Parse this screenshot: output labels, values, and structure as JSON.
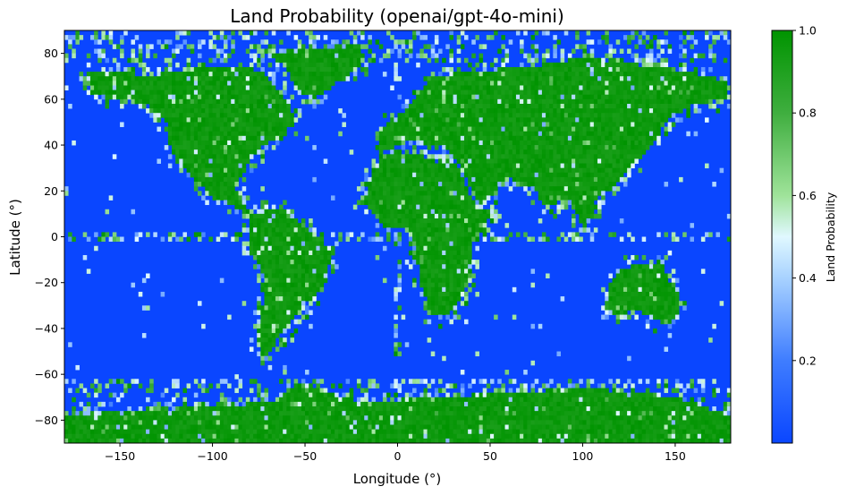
{
  "chart_data": {
    "type": "heatmap",
    "title": "Land Probability (openai/gpt-4o-mini)",
    "xlabel": "Longitude (°)",
    "ylabel": "Latitude (°)",
    "xlim": [
      -180,
      180
    ],
    "ylim": [
      -90,
      90
    ],
    "x_ticks": [
      -150,
      -100,
      -50,
      0,
      50,
      100,
      150
    ],
    "y_ticks": [
      -80,
      -60,
      -40,
      -20,
      0,
      20,
      40,
      60,
      80
    ],
    "x_tick_labels": [
      "−150",
      "−100",
      "−50",
      "0",
      "50",
      "100",
      "150"
    ],
    "y_tick_labels": [
      "−80",
      "−60",
      "−40",
      "−20",
      "0",
      "20",
      "40",
      "60",
      "80"
    ],
    "grid": false,
    "cell_size_degrees": 2,
    "colorbar": {
      "label": "Land Probability",
      "range": [
        0,
        1
      ],
      "ticks": [
        0.2,
        0.4,
        0.6,
        0.8,
        1.0
      ],
      "tick_labels": [
        "0.2",
        "0.4",
        "0.6",
        "0.8",
        "1.0"
      ],
      "colors": [
        {
          "value": 0.0,
          "color": "#0a46ff"
        },
        {
          "value": 0.2,
          "color": "#3f7dff"
        },
        {
          "value": 0.4,
          "color": "#a8d2ff"
        },
        {
          "value": 0.5,
          "color": "#e0f8ff"
        },
        {
          "value": 0.6,
          "color": "#9fe39a"
        },
        {
          "value": 0.8,
          "color": "#3fae3f"
        },
        {
          "value": 1.0,
          "color": "#009400"
        }
      ]
    },
    "land_regions": [
      {
        "name": "North America",
        "points": [
          [
            -168,
            72
          ],
          [
            -150,
            72
          ],
          [
            -135,
            70
          ],
          [
            -120,
            72
          ],
          [
            -100,
            74
          ],
          [
            -80,
            74
          ],
          [
            -70,
            70
          ],
          [
            -62,
            62
          ],
          [
            -55,
            52
          ],
          [
            -62,
            45
          ],
          [
            -75,
            38
          ],
          [
            -82,
            30
          ],
          [
            -88,
            22
          ],
          [
            -84,
            15
          ],
          [
            -78,
            8
          ],
          [
            -88,
            13
          ],
          [
            -100,
            18
          ],
          [
            -108,
            24
          ],
          [
            -118,
            32
          ],
          [
            -124,
            42
          ],
          [
            -125,
            50
          ],
          [
            -135,
            58
          ],
          [
            -150,
            60
          ],
          [
            -165,
            62
          ]
        ]
      },
      {
        "name": "Greenland",
        "points": [
          [
            -72,
            80
          ],
          [
            -20,
            84
          ],
          [
            -18,
            76
          ],
          [
            -38,
            64
          ],
          [
            -45,
            60
          ],
          [
            -55,
            66
          ],
          [
            -62,
            75
          ]
        ]
      },
      {
        "name": "South America",
        "points": [
          [
            -80,
            10
          ],
          [
            -62,
            12
          ],
          [
            -50,
            4
          ],
          [
            -36,
            -6
          ],
          [
            -38,
            -20
          ],
          [
            -48,
            -28
          ],
          [
            -58,
            -38
          ],
          [
            -66,
            -46
          ],
          [
            -72,
            -54
          ],
          [
            -76,
            -44
          ],
          [
            -73,
            -30
          ],
          [
            -71,
            -18
          ],
          [
            -80,
            -6
          ],
          [
            -80,
            2
          ]
        ]
      },
      {
        "name": "Eurasia",
        "points": [
          [
            -10,
            36
          ],
          [
            -10,
            44
          ],
          [
            -5,
            50
          ],
          [
            5,
            56
          ],
          [
            10,
            62
          ],
          [
            20,
            70
          ],
          [
            40,
            72
          ],
          [
            70,
            74
          ],
          [
            100,
            78
          ],
          [
            140,
            74
          ],
          [
            170,
            70
          ],
          [
            180,
            66
          ],
          [
            178,
            60
          ],
          [
            160,
            58
          ],
          [
            143,
            50
          ],
          [
            140,
            42
          ],
          [
            130,
            34
          ],
          [
            122,
            28
          ],
          [
            118,
            22
          ],
          [
            108,
            18
          ],
          [
            105,
            10
          ],
          [
            100,
            4
          ],
          [
            97,
            10
          ],
          [
            92,
            18
          ],
          [
            80,
            12
          ],
          [
            75,
            20
          ],
          [
            68,
            24
          ],
          [
            58,
            26
          ],
          [
            55,
            22
          ],
          [
            45,
            14
          ],
          [
            38,
            24
          ],
          [
            34,
            32
          ],
          [
            28,
            38
          ],
          [
            20,
            40
          ],
          [
            10,
            42
          ],
          [
            0,
            40
          ]
        ]
      },
      {
        "name": "Africa",
        "points": [
          [
            -17,
            20
          ],
          [
            -12,
            32
          ],
          [
            -5,
            36
          ],
          [
            10,
            37
          ],
          [
            20,
            33
          ],
          [
            32,
            31
          ],
          [
            43,
            12
          ],
          [
            51,
            11
          ],
          [
            40,
            -4
          ],
          [
            40,
            -15
          ],
          [
            35,
            -25
          ],
          [
            28,
            -34
          ],
          [
            18,
            -35
          ],
          [
            13,
            -20
          ],
          [
            9,
            -2
          ],
          [
            5,
            5
          ],
          [
            -8,
            5
          ],
          [
            -17,
            14
          ]
        ]
      },
      {
        "name": "Australia",
        "points": [
          [
            114,
            -22
          ],
          [
            122,
            -14
          ],
          [
            132,
            -12
          ],
          [
            137,
            -12
          ],
          [
            142,
            -10
          ],
          [
            146,
            -18
          ],
          [
            153,
            -26
          ],
          [
            151,
            -34
          ],
          [
            146,
            -39
          ],
          [
            138,
            -35
          ],
          [
            130,
            -32
          ],
          [
            118,
            -34
          ],
          [
            114,
            -30
          ]
        ]
      },
      {
        "name": "Antarctica",
        "points": [
          [
            -180,
            -90
          ],
          [
            180,
            -90
          ],
          [
            180,
            -78
          ],
          [
            150,
            -70
          ],
          [
            100,
            -66
          ],
          [
            60,
            -68
          ],
          [
            20,
            -70
          ],
          [
            -20,
            -72
          ],
          [
            -55,
            -64
          ],
          [
            -65,
            -72
          ],
          [
            -100,
            -74
          ],
          [
            -140,
            -76
          ],
          [
            -180,
            -78
          ]
        ]
      }
    ]
  }
}
